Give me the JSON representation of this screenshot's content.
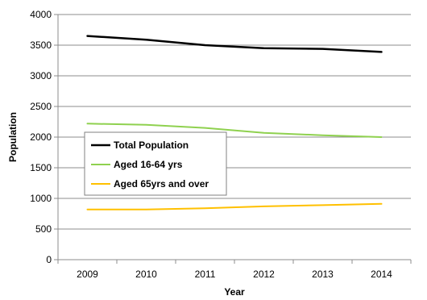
{
  "chart_data": {
    "type": "line",
    "title": "",
    "xlabel": "Year",
    "ylabel": "Population",
    "categories": [
      "2009",
      "2010",
      "2011",
      "2012",
      "2013",
      "2014"
    ],
    "ylim": [
      0,
      4000
    ],
    "yticks": [
      "0",
      "500",
      "1000",
      "1500",
      "2000",
      "2500",
      "3000",
      "3500",
      "4000"
    ],
    "grid": true,
    "legend_position": "center-left",
    "series": [
      {
        "name": "Total Population",
        "color": "#000000",
        "values": [
          3650,
          3590,
          3500,
          3450,
          3440,
          3390
        ]
      },
      {
        "name": "Aged 16-64 yrs",
        "color": "#8fd14f",
        "values": [
          2220,
          2200,
          2150,
          2070,
          2030,
          2000
        ]
      },
      {
        "name": "Aged 65yrs and over",
        "color": "#ffc000",
        "values": [
          820,
          820,
          840,
          870,
          890,
          910
        ]
      }
    ]
  }
}
